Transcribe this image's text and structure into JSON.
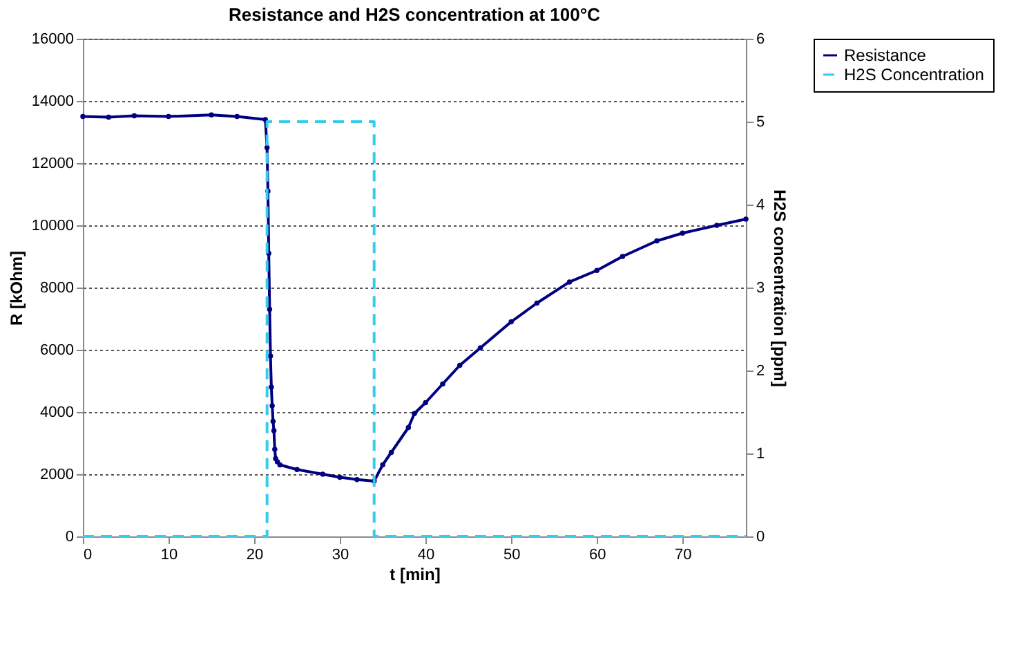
{
  "chart_data": {
    "type": "line",
    "title": "Resistance and H2S concentration at 100°C",
    "xlabel": "t [min]",
    "ylabel": "R [kOhm]",
    "y2label": "H2S concentration [ppm]",
    "xlim": [
      0,
      77.4
    ],
    "xticks": [
      0,
      10,
      20,
      30,
      40,
      50,
      60,
      70
    ],
    "ylim": [
      0,
      16000
    ],
    "yticks": [
      0,
      2000,
      4000,
      6000,
      8000,
      10000,
      12000,
      14000,
      16000
    ],
    "y2lim": [
      0,
      6
    ],
    "y2ticks": [
      0,
      1,
      2,
      3,
      4,
      5,
      6
    ],
    "grid": "y",
    "legend": "right",
    "series": [
      {
        "name": "Resistance",
        "color": "#000080",
        "marker": "circle",
        "line_style": "solid",
        "x": [
          0,
          3,
          6,
          10,
          15,
          18,
          21.3,
          21.5,
          21.6,
          21.7,
          21.8,
          21.9,
          22.0,
          22.1,
          22.2,
          22.3,
          22.4,
          22.5,
          22.7,
          23,
          25,
          28,
          30,
          32,
          34,
          35,
          36,
          38,
          38.7,
          40,
          42,
          44,
          46.4,
          50,
          53,
          56.8,
          60,
          63,
          67,
          70,
          74,
          77.4
        ],
        "values": [
          13500,
          13480,
          13520,
          13500,
          13550,
          13500,
          13400,
          12500,
          11100,
          9100,
          7300,
          5800,
          4800,
          4200,
          3700,
          3400,
          2800,
          2500,
          2400,
          2300,
          2150,
          2000,
          1900,
          1830,
          1780,
          2300,
          2700,
          3500,
          3950,
          4300,
          4900,
          5500,
          6060,
          6900,
          7500,
          8180,
          8550,
          9000,
          9500,
          9750,
          10000,
          10200
        ]
      },
      {
        "name": "H2S Concentration",
        "color": "#33ccee",
        "marker": "none",
        "line_style": "dashed",
        "axis": "y2",
        "x": [
          0,
          21.5,
          21.5,
          34,
          34,
          77.4
        ],
        "values": [
          0,
          0,
          5,
          5,
          0,
          0
        ]
      }
    ]
  }
}
